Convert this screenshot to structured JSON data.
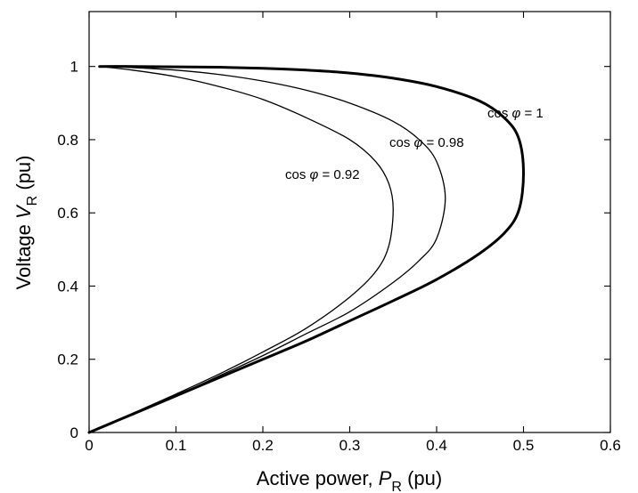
{
  "chart_data": {
    "type": "line",
    "xlabel": "Active power, ",
    "xlabel_var": "P",
    "xlabel_sub": "R",
    "xlabel_unit": " (pu)",
    "ylabel": "Voltage ",
    "ylabel_var": "V",
    "ylabel_sub": "R",
    "ylabel_unit": " (pu)",
    "xlim": [
      0,
      0.6
    ],
    "ylim": [
      0,
      1.15
    ],
    "xticks": [
      0,
      0.1,
      0.2,
      0.3,
      0.4,
      0.5,
      0.6
    ],
    "xtick_labels": [
      "0",
      "0.1",
      "0.2",
      "0.3",
      "0.4",
      "0.5",
      "0.6"
    ],
    "yticks": [
      0,
      0.2,
      0.4,
      0.6,
      0.8,
      1.0
    ],
    "ytick_labels": [
      "0",
      "0.2",
      "0.4",
      "0.6",
      "0.8",
      "1"
    ],
    "grid": false,
    "series": [
      {
        "name": "cos φ = 1",
        "label_prefix": "cos ",
        "label_symbol": "φ",
        "label_suffix": " = 1",
        "bold": true,
        "x": [
          0,
          0.05,
          0.1,
          0.15,
          0.2,
          0.25,
          0.3,
          0.35,
          0.4,
          0.45,
          0.48,
          0.495,
          0.5,
          0.495,
          0.48,
          0.45,
          0.4,
          0.35,
          0.3,
          0.25,
          0.2,
          0.15,
          0.1,
          0.05,
          0.012
        ],
        "y": [
          0,
          0.05,
          0.1,
          0.15,
          0.2,
          0.25,
          0.305,
          0.36,
          0.418,
          0.49,
          0.55,
          0.61,
          0.707,
          0.8,
          0.855,
          0.905,
          0.945,
          0.968,
          0.982,
          0.99,
          0.995,
          0.998,
          0.999,
          1.0,
          1.0
        ]
      },
      {
        "name": "cos φ = 0.98",
        "label_prefix": "cos ",
        "label_symbol": "φ",
        "label_suffix": " = 0.98",
        "bold": false,
        "x": [
          0,
          0.05,
          0.1,
          0.15,
          0.2,
          0.25,
          0.3,
          0.35,
          0.38,
          0.4,
          0.41,
          0.4,
          0.38,
          0.35,
          0.3,
          0.25,
          0.2,
          0.15,
          0.1,
          0.05,
          0.012
        ],
        "y": [
          0,
          0.05,
          0.1,
          0.155,
          0.21,
          0.27,
          0.33,
          0.41,
          0.47,
          0.53,
          0.64,
          0.74,
          0.8,
          0.85,
          0.9,
          0.935,
          0.96,
          0.978,
          0.99,
          0.997,
          1.0
        ]
      },
      {
        "name": "cos φ = 0.92",
        "label_prefix": "cos ",
        "label_symbol": "φ",
        "label_suffix": " = 0.92",
        "bold": false,
        "x": [
          0,
          0.05,
          0.1,
          0.15,
          0.2,
          0.25,
          0.3,
          0.33,
          0.345,
          0.35,
          0.345,
          0.33,
          0.3,
          0.25,
          0.2,
          0.15,
          0.1,
          0.05,
          0.012
        ],
        "y": [
          0,
          0.052,
          0.105,
          0.16,
          0.22,
          0.285,
          0.37,
          0.44,
          0.51,
          0.61,
          0.68,
          0.74,
          0.8,
          0.86,
          0.91,
          0.945,
          0.972,
          0.99,
          1.0
        ]
      }
    ]
  }
}
